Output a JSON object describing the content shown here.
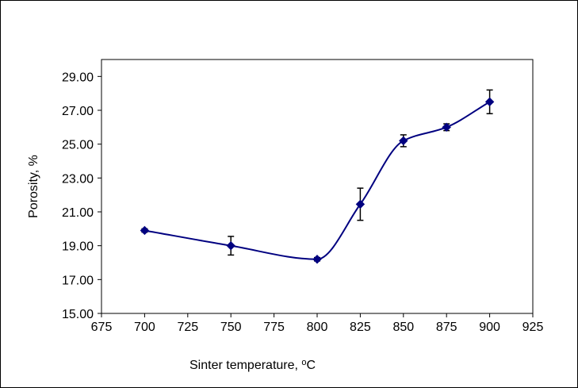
{
  "chart_data": {
    "type": "scatter",
    "title": "",
    "xlabel": "Sinter temperature, ",
    "xlabel_sup": "o",
    "xlabel_tail": "C",
    "ylabel": "Porosity, %",
    "xlim": [
      675,
      925
    ],
    "ylim": [
      15.0,
      30.0
    ],
    "x_ticks": [
      "675",
      "700",
      "725",
      "750",
      "775",
      "800",
      "825",
      "850",
      "875",
      "900",
      "925"
    ],
    "x_tick_values": [
      675,
      700,
      725,
      750,
      775,
      800,
      825,
      850,
      875,
      900,
      925
    ],
    "y_ticks": [
      "15.00",
      "17.00",
      "19.00",
      "21.00",
      "23.00",
      "25.00",
      "27.00",
      "29.00"
    ],
    "y_tick_values": [
      15,
      17,
      19,
      21,
      23,
      25,
      27,
      29
    ],
    "legend": "none",
    "grid": false,
    "smooth_line": true,
    "series": [
      {
        "name": "Porosity",
        "color": "#000080",
        "x": [
          700,
          750,
          800,
          825,
          850,
          875,
          900
        ],
        "y": [
          19.9,
          19.0,
          18.2,
          21.45,
          25.2,
          26.0,
          27.5
        ],
        "error": [
          0.1,
          0.55,
          0.1,
          0.95,
          0.35,
          0.2,
          0.7
        ]
      }
    ]
  }
}
